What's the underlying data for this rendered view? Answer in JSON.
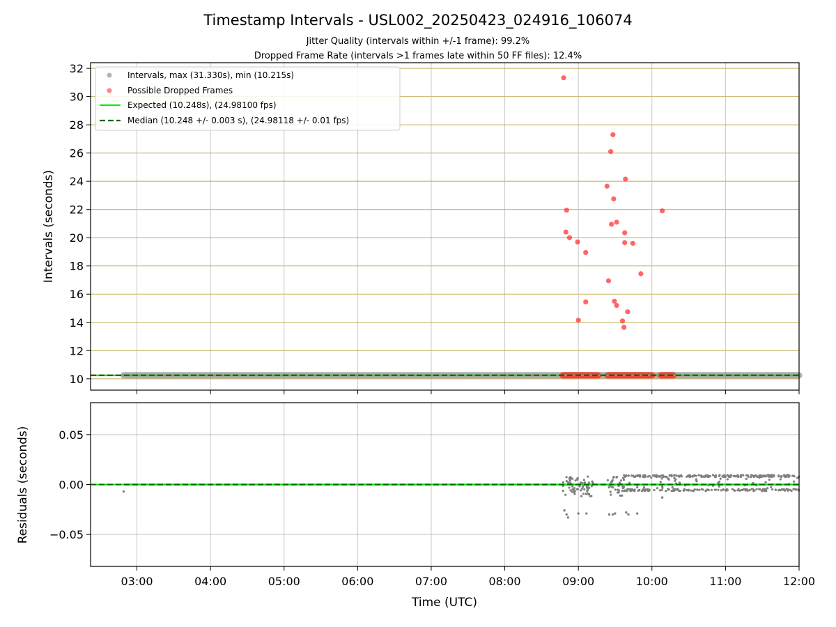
{
  "title": "Timestamp Intervals - USL002_20250423_024916_106074",
  "subtitle_jitter": "Jitter Quality (intervals within +/-1 frame): 99.2%",
  "subtitle_dropped": "Dropped Frame Rate (intervals >1 frames late within 50 FF files): 12.4%",
  "colors": {
    "intervals": "#808080",
    "dropped": "#ff3333",
    "expected": "#00ee00",
    "median": "#006400",
    "hgrid_top": "#c8b464",
    "grid": "#b0b0b0"
  },
  "chart_data": [
    {
      "type": "scatter",
      "name": "intervals-panel",
      "xlabel": "",
      "ylabel": "Intervals (seconds)",
      "x_unit": "hours UTC",
      "xlim": [
        2.37,
        12.0
      ],
      "ylim": [
        9.2,
        32.4
      ],
      "yticks": [
        10,
        12,
        14,
        16,
        18,
        20,
        22,
        24,
        26,
        28,
        30,
        32
      ],
      "ytick_labels": [
        "10",
        "12",
        "14",
        "16",
        "18",
        "20",
        "22",
        "24",
        "26",
        "28",
        "30",
        "32"
      ],
      "grid": "horizontal",
      "legend_placement": "top-left",
      "legend": [
        "Intervals, max (31.330s), min (10.215s)",
        "Possible Dropped Frames",
        "Expected (10.248s), (24.98100 fps)",
        "Median (10.248 +/- 0.003 s), (24.98118 +/- 0.01 fps)"
      ],
      "expected_value": 10.248,
      "median_value": 10.248,
      "interval_band": {
        "x_start": 2.82,
        "x_end": 12.0,
        "y": 10.248
      },
      "dropped_frames": [
        {
          "x": 8.8,
          "y": 31.33
        },
        {
          "x": 9.47,
          "y": 27.3
        },
        {
          "x": 9.44,
          "y": 26.1
        },
        {
          "x": 9.64,
          "y": 24.15
        },
        {
          "x": 9.39,
          "y": 23.65
        },
        {
          "x": 9.48,
          "y": 22.75
        },
        {
          "x": 8.84,
          "y": 21.95
        },
        {
          "x": 10.14,
          "y": 21.9
        },
        {
          "x": 9.52,
          "y": 21.1
        },
        {
          "x": 9.45,
          "y": 20.95
        },
        {
          "x": 8.83,
          "y": 20.4
        },
        {
          "x": 9.63,
          "y": 20.35
        },
        {
          "x": 8.88,
          "y": 20.0
        },
        {
          "x": 8.99,
          "y": 19.7
        },
        {
          "x": 9.63,
          "y": 19.65
        },
        {
          "x": 9.74,
          "y": 19.6
        },
        {
          "x": 9.1,
          "y": 18.95
        },
        {
          "x": 9.85,
          "y": 17.45
        },
        {
          "x": 9.41,
          "y": 16.95
        },
        {
          "x": 9.49,
          "y": 15.5
        },
        {
          "x": 9.1,
          "y": 15.45
        },
        {
          "x": 9.52,
          "y": 15.2
        },
        {
          "x": 9.67,
          "y": 14.75
        },
        {
          "x": 9.0,
          "y": 14.15
        },
        {
          "x": 9.6,
          "y": 14.1
        },
        {
          "x": 9.62,
          "y": 13.65
        }
      ],
      "dropped_band_segments": [
        [
          8.79,
          9.27
        ],
        [
          9.4,
          10.0
        ],
        [
          10.12,
          10.29
        ]
      ]
    },
    {
      "type": "scatter",
      "name": "residuals-panel",
      "xlabel": "Time (UTC)",
      "ylabel": "Residuals (seconds)",
      "x_unit": "hours UTC",
      "xlim": [
        2.37,
        12.0
      ],
      "ylim": [
        -0.082,
        0.082
      ],
      "yticks": [
        0.05,
        0.0,
        -0.05
      ],
      "ytick_labels": [
        "0.05",
        "0.00",
        "−0.05"
      ],
      "xticks": [
        3,
        4,
        5,
        6,
        7,
        8,
        9,
        10,
        11,
        12
      ],
      "xtick_labels": [
        "03:00",
        "04:00",
        "05:00",
        "06:00",
        "07:00",
        "08:00",
        "09:00",
        "10:00",
        "11:00",
        "12:00"
      ],
      "grid": "both",
      "residual_outliers": [
        {
          "x": 2.82,
          "y": -0.007
        },
        {
          "x": 8.81,
          "y": -0.026
        },
        {
          "x": 8.84,
          "y": -0.03
        },
        {
          "x": 8.86,
          "y": -0.033
        },
        {
          "x": 9.0,
          "y": -0.029
        },
        {
          "x": 9.11,
          "y": -0.029
        },
        {
          "x": 9.42,
          "y": -0.03
        },
        {
          "x": 9.47,
          "y": -0.03
        },
        {
          "x": 9.5,
          "y": -0.029
        },
        {
          "x": 9.65,
          "y": -0.028
        },
        {
          "x": 9.68,
          "y": -0.03
        },
        {
          "x": 9.8,
          "y": -0.029
        },
        {
          "x": 10.14,
          "y": -0.013
        }
      ],
      "jitter_clusters": [
        {
          "x_start": 8.79,
          "x_end": 9.2,
          "y_min": -0.012,
          "y_max": 0.008
        },
        {
          "x_start": 9.39,
          "x_end": 9.62,
          "y_min": -0.012,
          "y_max": 0.009
        },
        {
          "x_start": 9.62,
          "x_end": 12.0,
          "y_min": -0.0065,
          "y_max": 0.0095
        }
      ]
    }
  ]
}
